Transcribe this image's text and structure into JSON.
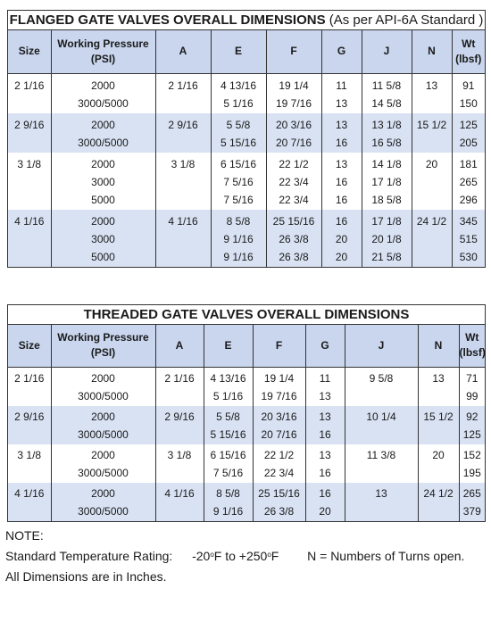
{
  "flanged": {
    "title": "FLANGED GATE VALVES OVERALL DIMENSIONS",
    "subtitle": "(As per API-6A Standard )",
    "headers": [
      "Size",
      "Working Pressure (PSI)",
      "A",
      "E",
      "F",
      "G",
      "J",
      "N",
      "Wt (lbsf)"
    ],
    "rows": [
      {
        "size": "2 1/16",
        "pressure": [
          "2000",
          "3000/5000"
        ],
        "a": "2 1/16",
        "e": [
          "4 13/16",
          "5 1/16"
        ],
        "f": [
          "19 1/4",
          "19 7/16"
        ],
        "g": [
          "11",
          "13"
        ],
        "j": [
          "11 5/8",
          "14 5/8"
        ],
        "n": "13",
        "wt": [
          "91",
          "150"
        ]
      },
      {
        "size": "2 9/16",
        "pressure": [
          "2000",
          "3000/5000"
        ],
        "a": "2 9/16",
        "e": [
          "5 5/8",
          "5 15/16"
        ],
        "f": [
          "20 3/16",
          "20 7/16"
        ],
        "g": [
          "13",
          "16"
        ],
        "j": [
          "13 1/8",
          "16 5/8"
        ],
        "n": "15 1/2",
        "wt": [
          "125",
          "205"
        ]
      },
      {
        "size": "3 1/8",
        "pressure": [
          "2000",
          "3000",
          "5000"
        ],
        "a": "3 1/8",
        "e": [
          "6 15/16",
          "7 5/16",
          "7 5/16"
        ],
        "f": [
          "22 1/2",
          "22 3/4",
          "22 3/4"
        ],
        "g": [
          "13",
          "16",
          "16"
        ],
        "j": [
          "14 1/8",
          "17 1/8",
          "18 5/8"
        ],
        "n": "20",
        "wt": [
          "181",
          "265",
          "296"
        ]
      },
      {
        "size": "4 1/16",
        "pressure": [
          "2000",
          "3000",
          "5000"
        ],
        "a": "4 1/16",
        "e": [
          "8 5/8",
          "9 1/16",
          "9 1/16"
        ],
        "f": [
          "25 15/16",
          "26 3/8",
          "26 3/8"
        ],
        "g": [
          "16",
          "20",
          "20"
        ],
        "j": [
          "17 1/8",
          "20 1/8",
          "21 5/8"
        ],
        "n": "24 1/2",
        "wt": [
          "345",
          "515",
          "530"
        ]
      }
    ]
  },
  "threaded": {
    "title": "THREADED GATE VALVES OVERALL DIMENSIONS",
    "headers": [
      "Size",
      "Working Pressure (PSI)",
      "A",
      "E",
      "F",
      "G",
      "J",
      "N",
      "Wt (lbsf)"
    ],
    "rows": [
      {
        "size": "2 1/16",
        "pressure": [
          "2000",
          "3000/5000"
        ],
        "a": "2 1/16",
        "e": [
          "4 13/16",
          "5 1/16"
        ],
        "f": [
          "19 1/4",
          "19 7/16"
        ],
        "g": [
          "11",
          "13"
        ],
        "j": [
          "9 5/8"
        ],
        "n": "13",
        "wt": [
          "71",
          "99"
        ]
      },
      {
        "size": "2 9/16",
        "pressure": [
          "2000",
          "3000/5000"
        ],
        "a": "2 9/16",
        "e": [
          "5 5/8",
          "5 15/16"
        ],
        "f": [
          "20 3/16",
          "20 7/16"
        ],
        "g": [
          "13",
          "16"
        ],
        "j": [
          "10 1/4"
        ],
        "n": "15 1/2",
        "wt": [
          "92",
          "125"
        ]
      },
      {
        "size": "3 1/8",
        "pressure": [
          "2000",
          "3000/5000"
        ],
        "a": "3 1/8",
        "e": [
          "6 15/16",
          "7 5/16"
        ],
        "f": [
          "22 1/2",
          "22 3/4"
        ],
        "g": [
          "13",
          "16"
        ],
        "j": [
          "11 3/8"
        ],
        "n": "20",
        "wt": [
          "152",
          "195"
        ]
      },
      {
        "size": "4 1/16",
        "pressure": [
          "2000",
          "3000/5000"
        ],
        "a": "4 1/16",
        "e": [
          "8 5/8",
          "9 1/16"
        ],
        "f": [
          "25 15/16",
          "26 3/8"
        ],
        "g": [
          "16",
          "20"
        ],
        "j": [
          "13"
        ],
        "n": "24 1/2",
        "wt": [
          "265",
          "379"
        ]
      }
    ]
  },
  "notes": {
    "heading": "NOTE:",
    "temp_label": "Standard Temperature Rating:",
    "temp_low": "-20",
    "temp_mid": "F to +250",
    "temp_unit": "F",
    "degree": "o",
    "turns": "N = Numbers of Turns open.",
    "dims": "All Dimensions are in Inches."
  }
}
